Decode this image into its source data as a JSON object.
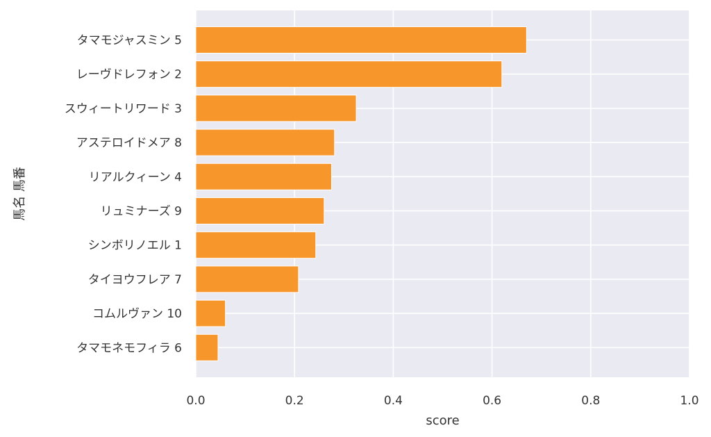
{
  "chart_data": {
    "type": "bar",
    "orientation": "horizontal",
    "categories": [
      "タマモジャスミン 5",
      "レーヴドレフォン 2",
      "スウィートリワード 3",
      "アステロイドメア 8",
      "リアルクィーン 4",
      "リュミナーズ 9",
      "シンボリノエル 1",
      "タイヨウフレア 7",
      "コムルヴァン 10",
      "タマモネモフィラ 6"
    ],
    "values": [
      0.67,
      0.62,
      0.325,
      0.281,
      0.275,
      0.26,
      0.243,
      0.208,
      0.06,
      0.045
    ],
    "xlabel": "score",
    "ylabel": "馬名 馬番",
    "xlim": [
      0,
      1.0
    ],
    "xticks": [
      "0.0",
      "0.2",
      "0.4",
      "0.6",
      "0.8",
      "1.0"
    ],
    "grid": true,
    "bar_color": "#f7962b",
    "background_color": "#eaeaf2"
  }
}
